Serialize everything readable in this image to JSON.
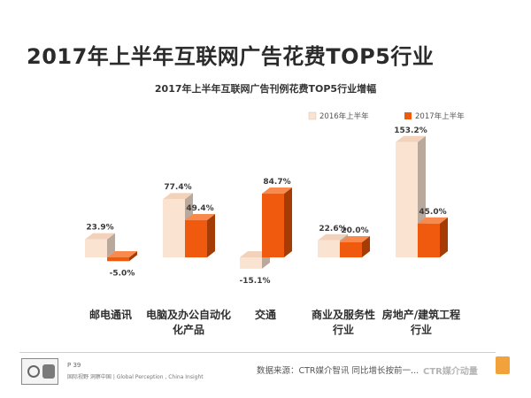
{
  "page": {
    "title": "2017年上半年互联网广告花费TOP5行业",
    "footer": {
      "page_number": "P 39",
      "slogan": "国际视野 洞察中国 | Global Perception , China Insight",
      "source": "数据来源：CTR媒介智讯   同比增长按前一...",
      "watermark": "CTR媒介动量"
    }
  },
  "colors": {
    "series_2016_front": "#fbe3d2",
    "series_2016_side": "#b8a99c",
    "series_2016_top": "#f3d2bc",
    "series_2017_front": "#f05a0e",
    "series_2017_side": "#a53c06",
    "series_2017_top": "#f88a4d",
    "label_color": "#3a3a3a"
  },
  "chart_data": {
    "type": "bar",
    "title": "2017年上半年互联网广告刊例花费TOP5行业增幅",
    "categories": [
      "邮电通讯",
      "电脑及办公自动化产品",
      "交通",
      "商业及服务性行业",
      "房地产/建筑工程行业"
    ],
    "category_lines": [
      [
        "邮电通讯"
      ],
      [
        "电脑及办公自动化",
        "化产品"
      ],
      [
        "交通"
      ],
      [
        "商业及服务性",
        "行业"
      ],
      [
        "房地产/建筑工程",
        "行业"
      ]
    ],
    "series": [
      {
        "name": "2016年上半年",
        "values": [
          23.9,
          77.4,
          -15.1,
          22.6,
          153.2
        ],
        "labels": [
          "23.9%",
          "77.4%",
          "-15.1%",
          "22.6%",
          "153.2%"
        ]
      },
      {
        "name": "2017年上半年",
        "values": [
          -5.0,
          49.4,
          84.7,
          20.0,
          45.0
        ],
        "labels": [
          "-5.0%",
          "49.4%",
          "84.7%",
          "20.0%",
          "45.0%"
        ]
      }
    ],
    "legend_position": "top-right",
    "grid": false
  }
}
